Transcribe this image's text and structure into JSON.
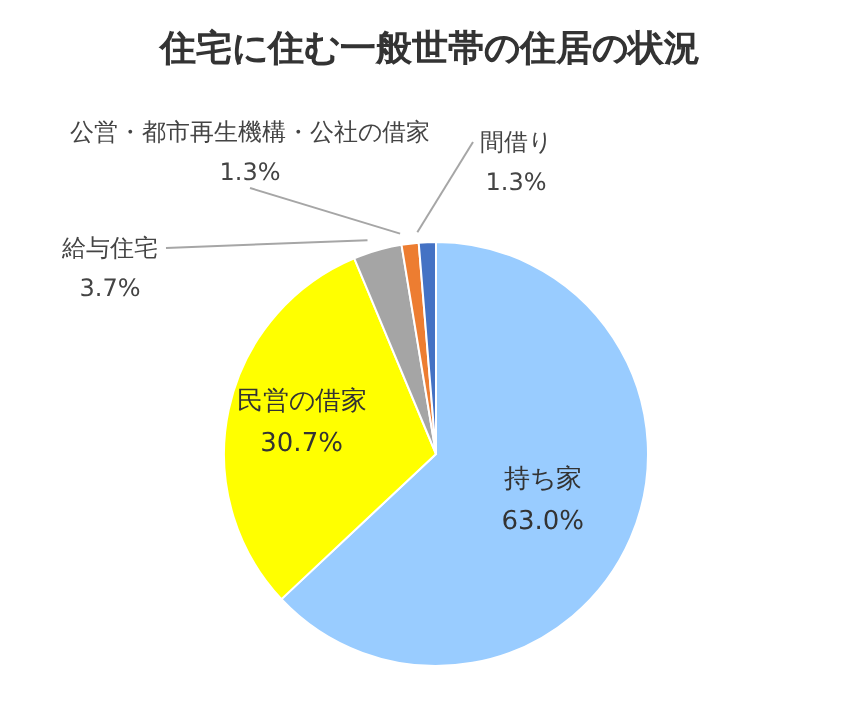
{
  "chart_data": {
    "type": "pie",
    "title": "住宅に住む一般世帯の住居の状況",
    "categories": [
      "持ち家",
      "民営の借家",
      "給与住宅",
      "公営・都市再生機構・公社の借家",
      "間借り"
    ],
    "values": [
      63.0,
      30.7,
      3.7,
      1.3,
      1.3
    ],
    "value_labels": [
      "63.0%",
      "30.7%",
      "3.7%",
      "1.3%",
      "1.3%"
    ],
    "colors": [
      "#99ccff",
      "#ffff00",
      "#a5a5a5",
      "#ed7d31",
      "#4472c4"
    ]
  }
}
